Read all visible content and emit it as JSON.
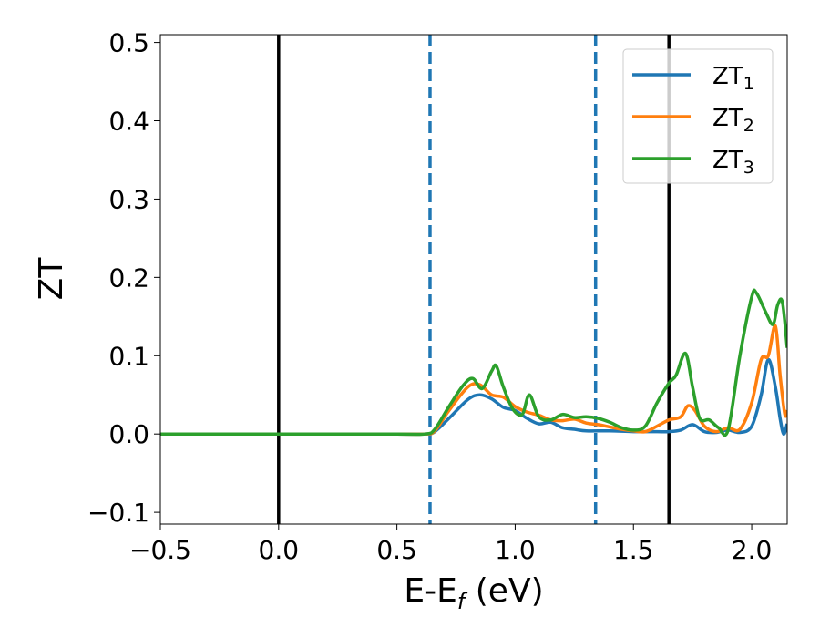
{
  "chart_data": {
    "type": "line",
    "xlabel": {
      "main": "E-E",
      "sub": "f",
      "unit": " (eV)"
    },
    "ylabel": "ZT",
    "xlim": [
      -0.5,
      2.15
    ],
    "ylim": [
      -0.115,
      0.51
    ],
    "xticks": [
      -0.5,
      0.0,
      0.5,
      1.0,
      1.5,
      2.0
    ],
    "xtick_labels": [
      "−0.5",
      "0.0",
      "0.5",
      "1.0",
      "1.5",
      "2.0"
    ],
    "yticks": [
      -0.1,
      0.0,
      0.1,
      0.2,
      0.3,
      0.4,
      0.5
    ],
    "ytick_labels": [
      "−0.1",
      "0.0",
      "0.1",
      "0.2",
      "0.3",
      "0.4",
      "0.5"
    ],
    "grid": false,
    "legend_position": "top-right",
    "vertical_lines": [
      {
        "x": 0.0,
        "style": "solid",
        "color": "#000000"
      },
      {
        "x": 0.64,
        "style": "dashed",
        "color": "#1f77b4"
      },
      {
        "x": 1.34,
        "style": "dashed",
        "color": "#1f77b4"
      },
      {
        "x": 1.65,
        "style": "solid",
        "color": "#000000"
      }
    ],
    "series": [
      {
        "name": "ZT",
        "sub": "1",
        "color": "#1f77b4",
        "x": [
          -0.5,
          0.0,
          0.5,
          0.62,
          0.66,
          0.72,
          0.8,
          0.85,
          0.9,
          0.95,
          1.0,
          1.05,
          1.1,
          1.15,
          1.2,
          1.25,
          1.3,
          1.4,
          1.5,
          1.6,
          1.65,
          1.7,
          1.75,
          1.8,
          1.85,
          1.9,
          1.95,
          2.0,
          2.04,
          2.07,
          2.1,
          2.12,
          2.135,
          2.15
        ],
        "y": [
          0.0,
          0.0,
          0.0,
          0.0,
          0.003,
          0.02,
          0.044,
          0.05,
          0.045,
          0.034,
          0.03,
          0.02,
          0.013,
          0.015,
          0.008,
          0.006,
          0.004,
          0.004,
          0.003,
          0.003,
          0.003,
          0.005,
          0.012,
          0.003,
          0.002,
          0.005,
          0.002,
          0.01,
          0.05,
          0.095,
          0.06,
          0.02,
          0.0,
          0.013
        ]
      },
      {
        "name": "ZT",
        "sub": "2",
        "color": "#ff7f0e",
        "x": [
          -0.5,
          0.0,
          0.5,
          0.62,
          0.66,
          0.72,
          0.8,
          0.85,
          0.9,
          0.95,
          1.0,
          1.05,
          1.1,
          1.15,
          1.2,
          1.25,
          1.3,
          1.35,
          1.4,
          1.45,
          1.5,
          1.55,
          1.6,
          1.65,
          1.7,
          1.73,
          1.76,
          1.8,
          1.85,
          1.9,
          1.95,
          2.0,
          2.04,
          2.07,
          2.1,
          2.12,
          2.14,
          2.15
        ],
        "y": [
          0.0,
          0.0,
          0.0,
          0.0,
          0.004,
          0.03,
          0.06,
          0.063,
          0.05,
          0.047,
          0.035,
          0.028,
          0.024,
          0.018,
          0.017,
          0.019,
          0.014,
          0.012,
          0.009,
          0.006,
          0.004,
          0.003,
          0.01,
          0.018,
          0.022,
          0.036,
          0.03,
          0.01,
          0.003,
          0.008,
          0.006,
          0.04,
          0.095,
          0.1,
          0.138,
          0.075,
          0.025,
          0.03
        ]
      },
      {
        "name": "ZT",
        "sub": "3",
        "color": "#2ca02c",
        "x": [
          -0.5,
          0.0,
          0.5,
          0.62,
          0.66,
          0.72,
          0.78,
          0.82,
          0.86,
          0.9,
          0.92,
          0.95,
          0.99,
          1.03,
          1.06,
          1.1,
          1.15,
          1.2,
          1.25,
          1.3,
          1.35,
          1.4,
          1.45,
          1.5,
          1.55,
          1.6,
          1.65,
          1.68,
          1.72,
          1.75,
          1.78,
          1.82,
          1.86,
          1.9,
          1.95,
          2.0,
          2.02,
          2.06,
          2.09,
          2.11,
          2.13,
          2.15
        ],
        "y": [
          0.0,
          0.0,
          0.0,
          0.0,
          0.006,
          0.035,
          0.062,
          0.071,
          0.058,
          0.08,
          0.087,
          0.06,
          0.032,
          0.025,
          0.05,
          0.022,
          0.018,
          0.025,
          0.021,
          0.022,
          0.02,
          0.015,
          0.008,
          0.005,
          0.01,
          0.04,
          0.065,
          0.075,
          0.103,
          0.06,
          0.02,
          0.018,
          0.008,
          0.005,
          0.1,
          0.175,
          0.18,
          0.155,
          0.14,
          0.165,
          0.168,
          0.11
        ]
      }
    ]
  }
}
